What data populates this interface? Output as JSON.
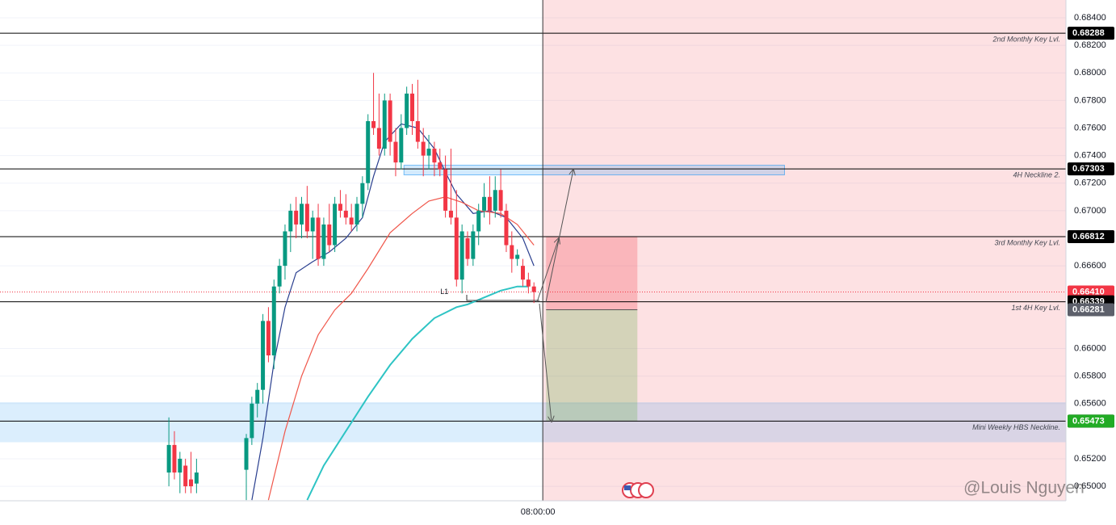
{
  "chart_data": {
    "type": "candlestick",
    "x": [
      -14,
      -13,
      -12,
      -11,
      -10,
      -9,
      0,
      1,
      2,
      3,
      4,
      5,
      6,
      7,
      8,
      9,
      10,
      11,
      12,
      13,
      14,
      15,
      16,
      17,
      18,
      19,
      20,
      21,
      22,
      23,
      24,
      25,
      26,
      27,
      28,
      29,
      30,
      31,
      32,
      33,
      34,
      35,
      36,
      37,
      38,
      39,
      40,
      41,
      42,
      43,
      44,
      45,
      46,
      47,
      48,
      49,
      50,
      51,
      52
    ],
    "open": [
      0.651,
      0.653,
      0.651,
      0.6515,
      0.6505,
      0.6502,
      0.6512,
      0.6535,
      0.656,
      0.657,
      0.662,
      0.6595,
      0.6645,
      0.666,
      0.6685,
      0.67,
      0.669,
      0.6705,
      0.6685,
      0.6695,
      0.6665,
      0.669,
      0.6675,
      0.6705,
      0.67,
      0.6695,
      0.669,
      0.6705,
      0.672,
      0.6765,
      0.676,
      0.6745,
      0.678,
      0.675,
      0.6735,
      0.676,
      0.6785,
      0.6765,
      0.675,
      0.674,
      0.6745,
      0.6735,
      0.673,
      0.67,
      0.6695,
      0.665,
      0.668,
      0.6665,
      0.6685,
      0.67,
      0.671,
      0.67,
      0.6715,
      0.67,
      0.6675,
      0.6665,
      0.666,
      0.665,
      0.6645
    ],
    "high": [
      0.655,
      0.654,
      0.6525,
      0.652,
      0.6525,
      0.652,
      0.6538,
      0.6565,
      0.6575,
      0.6625,
      0.663,
      0.665,
      0.6665,
      0.669,
      0.6705,
      0.671,
      0.671,
      0.6718,
      0.67,
      0.6705,
      0.6695,
      0.6705,
      0.671,
      0.6715,
      0.6712,
      0.6705,
      0.671,
      0.6725,
      0.677,
      0.68,
      0.6785,
      0.6785,
      0.6785,
      0.676,
      0.677,
      0.679,
      0.6792,
      0.6795,
      0.676,
      0.6755,
      0.675,
      0.6745,
      0.674,
      0.6745,
      0.6715,
      0.669,
      0.6685,
      0.669,
      0.6705,
      0.672,
      0.6725,
      0.6725,
      0.673,
      0.6705,
      0.6685,
      0.6672,
      0.6665,
      0.6655,
      0.6648
    ],
    "low": [
      0.65,
      0.6505,
      0.6495,
      0.6495,
      0.6495,
      0.6495,
      0.649,
      0.653,
      0.655,
      0.656,
      0.659,
      0.6585,
      0.664,
      0.665,
      0.667,
      0.668,
      0.668,
      0.668,
      0.6665,
      0.666,
      0.666,
      0.667,
      0.667,
      0.6695,
      0.669,
      0.6685,
      0.6685,
      0.6695,
      0.6715,
      0.6755,
      0.674,
      0.674,
      0.674,
      0.6725,
      0.673,
      0.6755,
      0.6755,
      0.6745,
      0.6725,
      0.673,
      0.6725,
      0.6725,
      0.6695,
      0.669,
      0.6645,
      0.664,
      0.666,
      0.666,
      0.6675,
      0.6695,
      0.669,
      0.6695,
      0.6695,
      0.667,
      0.6655,
      0.666,
      0.6645,
      0.664,
      0.6633
    ],
    "close": [
      0.653,
      0.651,
      0.652,
      0.65,
      0.65,
      0.651,
      0.6535,
      0.656,
      0.657,
      0.662,
      0.6595,
      0.6645,
      0.666,
      0.6685,
      0.67,
      0.669,
      0.6705,
      0.6685,
      0.6695,
      0.6665,
      0.669,
      0.6675,
      0.6705,
      0.67,
      0.6695,
      0.669,
      0.6705,
      0.672,
      0.6765,
      0.676,
      0.6745,
      0.678,
      0.675,
      0.6735,
      0.676,
      0.6785,
      0.6765,
      0.675,
      0.674,
      0.6745,
      0.6735,
      0.673,
      0.67,
      0.6695,
      0.665,
      0.6685,
      0.6665,
      0.6685,
      0.67,
      0.671,
      0.67,
      0.6715,
      0.67,
      0.6675,
      0.6665,
      0.6668,
      0.665,
      0.6645,
      0.6641
    ],
    "up_color": "#089981",
    "down_color": "#f23645",
    "xlim": [
      -44.53,
      148.18
    ],
    "ylim": [
      0.64895,
      0.68529
    ],
    "yticks": [
      {
        "value": 0.684,
        "label": "0.68400"
      },
      {
        "value": 0.682,
        "label": "0.68200"
      },
      {
        "value": 0.68,
        "label": "0.68000"
      },
      {
        "value": 0.678,
        "label": "0.67800"
      },
      {
        "value": 0.676,
        "label": "0.67600"
      },
      {
        "value": 0.674,
        "label": "0.67400"
      },
      {
        "value": 0.672,
        "label": "0.67200"
      },
      {
        "value": 0.67,
        "label": "0.67000"
      },
      {
        "value": 0.666,
        "label": "0.66600"
      },
      {
        "value": 0.66,
        "label": "0.66000"
      },
      {
        "value": 0.658,
        "label": "0.65800"
      },
      {
        "value": 0.656,
        "label": "0.65600"
      },
      {
        "value": 0.652,
        "label": "0.65200"
      },
      {
        "value": 0.65,
        "label": "0.65000"
      }
    ],
    "grid": true,
    "lines": [
      {
        "color": "#2a3f8f",
        "x": [
          1,
          3,
          5,
          7,
          9,
          12,
          15,
          18,
          21,
          23,
          25,
          28,
          31,
          34,
          36,
          38,
          41,
          44,
          47,
          50,
          52
        ],
        "values": [
          0.649,
          0.6535,
          0.659,
          0.663,
          0.6655,
          0.6663,
          0.667,
          0.668,
          0.6695,
          0.6725,
          0.675,
          0.6763,
          0.676,
          0.6745,
          0.6728,
          0.6712,
          0.6698,
          0.67,
          0.6695,
          0.668,
          0.666
        ]
      },
      {
        "color": "#f0574b",
        "x": [
          4,
          7,
          10,
          13,
          16,
          19,
          22,
          26,
          30,
          33,
          36,
          39,
          42,
          46,
          49,
          52
        ],
        "values": [
          0.649,
          0.654,
          0.658,
          0.661,
          0.6628,
          0.664,
          0.6658,
          0.6684,
          0.6698,
          0.6707,
          0.671,
          0.6706,
          0.67,
          0.6698,
          0.669,
          0.6675
        ]
      },
      {
        "color": "#2ec4c4",
        "x": [
          11,
          14,
          18,
          22,
          26,
          30,
          34,
          38,
          40,
          43,
          46,
          49,
          51
        ],
        "values": [
          0.649,
          0.6515,
          0.654,
          0.6565,
          0.6588,
          0.6607,
          0.6622,
          0.663,
          0.6632,
          0.6637,
          0.6642,
          0.6645,
          0.6645
        ]
      }
    ],
    "levels": [
      {
        "value": 0.68288,
        "label": "2nd Monthly Key Lvl."
      },
      {
        "value": 0.67303,
        "label": "4H Neckline 2."
      },
      {
        "value": 0.66812,
        "label": "3rd Monthly Key Lvl."
      },
      {
        "value": 0.66339,
        "label": "1st 4H Key Lvl."
      },
      {
        "value": 0.65473,
        "label": "Mini Weekly HBS Neckline."
      }
    ],
    "price_tags": [
      {
        "value": 0.68288,
        "label": "0.68288",
        "color": "#000000"
      },
      {
        "value": 0.67303,
        "label": "0.67303",
        "color": "#000000"
      },
      {
        "value": 0.66812,
        "label": "0.66812",
        "color": "#f23645"
      },
      {
        "value": 0.66812,
        "label": "0.66812",
        "color": "#000000"
      },
      {
        "value": 0.6641,
        "label": "0.66410",
        "color": "#f23645"
      },
      {
        "value": 0.66339,
        "label": "0.66339",
        "color": "#000000"
      },
      {
        "value": 0.66281,
        "label": "0.66281",
        "color": "#5d606b"
      },
      {
        "value": 0.65473,
        "label": "0.65473",
        "color": "#000000"
      },
      {
        "value": 0.65473,
        "label": "0.65473",
        "color": "#22ab25"
      }
    ],
    "current_price": 0.6641,
    "zones": [
      {
        "x": [
          53.6,
          null
        ],
        "y": [
          null,
          null
        ],
        "color": "rgba(242,54,69,0.15)"
      },
      {
        "x": [
          null,
          null
        ],
        "y": [
          0.6532,
          0.6561
        ],
        "color": "rgba(33,150,243,0.16)"
      },
      {
        "x": [
          28.5,
          97.3
        ],
        "y": [
          0.6726,
          0.6733
        ],
        "color": "rgba(33,150,243,0.2)"
      }
    ],
    "position": {
      "x": [
        54.2,
        70.7
      ],
      "stop": 0.66812,
      "entry": 0.66281,
      "target": 0.65473
    },
    "annotations": [
      {
        "text": "L1",
        "x": 35.8,
        "y": 0.6641
      }
    ],
    "crosshair_x": 53.6,
    "time_label": "08:00:00",
    "watermark": "@Louis Nguyen"
  }
}
